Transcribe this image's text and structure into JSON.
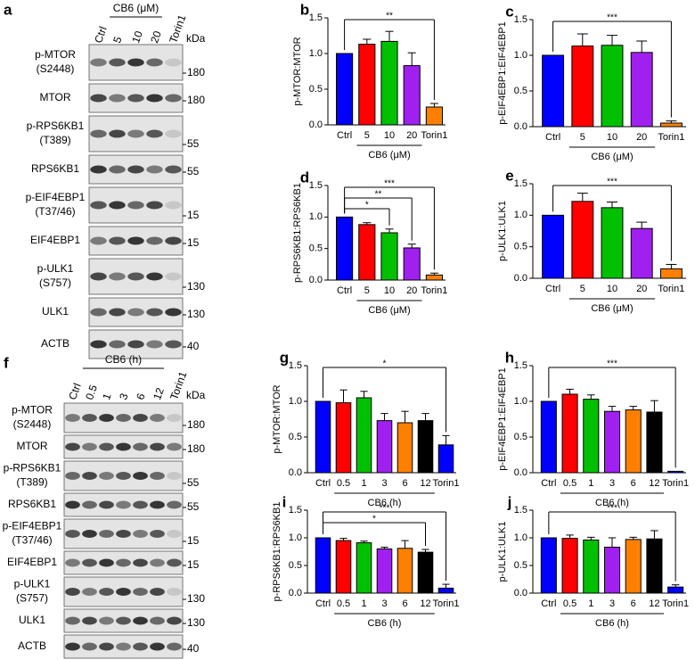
{
  "blots": [
    {
      "panel": "a",
      "lanes": [
        "Ctrl",
        "5",
        "10",
        "20",
        "Torin1"
      ],
      "group": {
        "label": "CB6 (μM)",
        "from": 1,
        "to": 3
      },
      "unit": "kDa",
      "rows": [
        {
          "name": "p-MTOR",
          "site": "(S2448)",
          "kda": 180
        },
        {
          "name": "MTOR",
          "kda": 180
        },
        {
          "name": "p-RPS6KB1",
          "site": "(T389)",
          "kda": 55
        },
        {
          "name": "RPS6KB1",
          "kda": 55
        },
        {
          "name": "p-EIF4EBP1",
          "site": "(T37/46)",
          "kda": 15
        },
        {
          "name": "EIF4EBP1",
          "kda": 15
        },
        {
          "name": "p-ULK1",
          "site": "(S757)",
          "kda": 130
        },
        {
          "name": "ULK1",
          "kda": 130
        },
        {
          "name": "ACTB",
          "kda": 40
        }
      ]
    },
    {
      "panel": "f",
      "lanes": [
        "Ctrl",
        "0.5",
        "1",
        "3",
        "6",
        "12",
        "Torin1"
      ],
      "group": {
        "label": "CB6 (h)",
        "from": 1,
        "to": 5
      },
      "unit": "kDa",
      "rows": [
        {
          "name": "p-MTOR",
          "site": "(S2448)",
          "kda": 180
        },
        {
          "name": "MTOR",
          "kda": 180
        },
        {
          "name": "p-RPS6KB1",
          "site": "(T389)",
          "kda": 55
        },
        {
          "name": "RPS6KB1",
          "kda": 55
        },
        {
          "name": "p-EIF4EBP1",
          "site": "(T37/46)",
          "kda": 15
        },
        {
          "name": "EIF4EBP1",
          "kda": 15
        },
        {
          "name": "p-ULK1",
          "site": "(S757)",
          "kda": 130
        },
        {
          "name": "ULK1",
          "kda": 130
        },
        {
          "name": "ACTB",
          "kda": 40
        }
      ]
    }
  ],
  "chart_data": [
    {
      "type": "bar",
      "panel": "b",
      "ylabel": "p-MTOR:MTOR",
      "categories": [
        "Ctrl",
        "5",
        "10",
        "20",
        "Torin1"
      ],
      "values": [
        1.0,
        1.13,
        1.17,
        0.83,
        0.25
      ],
      "errors": [
        null,
        0.07,
        0.14,
        0.18,
        0.05
      ],
      "colors": [
        "#0000ff",
        "#ff0000",
        "#00c000",
        "#a020f0",
        "#ff8000"
      ],
      "ylim": [
        0,
        1.5
      ],
      "yticks": [
        {
          "value": 0,
          "label": "0.0"
        },
        {
          "value": 0.5,
          "label": "0.5"
        },
        {
          "value": 1,
          "label": "1.0"
        },
        {
          "value": 1.5,
          "label": "1.5"
        }
      ],
      "group": {
        "label": "CB6 (μM)",
        "from": 1,
        "to": 3
      },
      "annotations": [
        {
          "text": "**",
          "from": 0,
          "to": 4
        }
      ]
    },
    {
      "type": "bar",
      "panel": "c",
      "ylabel": "p-EIF4EBP1:EIF4EBP1",
      "categories": [
        "Ctrl",
        "5",
        "10",
        "20",
        "Torin1"
      ],
      "values": [
        1.0,
        1.13,
        1.14,
        1.04,
        0.05
      ],
      "errors": [
        null,
        0.17,
        0.14,
        0.16,
        0.03
      ],
      "colors": [
        "#0000ff",
        "#ff0000",
        "#00c000",
        "#a020f0",
        "#ff8000"
      ],
      "ylim": [
        0,
        1.5
      ],
      "yticks": [
        {
          "value": 0,
          "label": "0.0"
        },
        {
          "value": 0.5,
          "label": "0.5"
        },
        {
          "value": 1,
          "label": "1.0"
        },
        {
          "value": 1.5,
          "label": "1.5"
        }
      ],
      "group": {
        "label": "CB6 (μM)",
        "from": 1,
        "to": 3
      },
      "annotations": [
        {
          "text": "***",
          "from": 0,
          "to": 4
        }
      ]
    },
    {
      "type": "bar",
      "panel": "d",
      "ylabel": "p-RPS6KB1:RPS6KB1",
      "categories": [
        "Ctrl",
        "5",
        "10",
        "20",
        "Torin1"
      ],
      "values": [
        1.0,
        0.88,
        0.75,
        0.51,
        0.08
      ],
      "errors": [
        null,
        0.03,
        0.06,
        0.06,
        0.03
      ],
      "colors": [
        "#0000ff",
        "#ff0000",
        "#00c000",
        "#a020f0",
        "#ff8000"
      ],
      "ylim": [
        0,
        1.5
      ],
      "yticks": [
        {
          "value": 0,
          "label": "0.0"
        },
        {
          "value": 0.5,
          "label": "0.5"
        },
        {
          "value": 1,
          "label": "1.0"
        },
        {
          "value": 1.5,
          "label": "1.5"
        }
      ],
      "group": {
        "label": "CB6 (μM)",
        "from": 1,
        "to": 3
      },
      "annotations": [
        {
          "text": "***",
          "from": 0,
          "to": 4
        },
        {
          "text": "**",
          "from": 0,
          "to": 3
        },
        {
          "text": "*",
          "from": 0,
          "to": 2
        }
      ]
    },
    {
      "type": "bar",
      "panel": "e",
      "ylabel": "p-ULK1:ULK1",
      "categories": [
        "Ctrl",
        "5",
        "10",
        "20",
        "Torin1"
      ],
      "values": [
        1.0,
        1.22,
        1.12,
        0.79,
        0.15
      ],
      "errors": [
        null,
        0.13,
        0.09,
        0.1,
        0.07
      ],
      "colors": [
        "#0000ff",
        "#ff0000",
        "#00c000",
        "#a020f0",
        "#ff8000"
      ],
      "ylim": [
        0,
        1.5
      ],
      "yticks": [
        {
          "value": 0,
          "label": "0.0"
        },
        {
          "value": 0.5,
          "label": "0.5"
        },
        {
          "value": 1,
          "label": "1.0"
        },
        {
          "value": 1.5,
          "label": "1.5"
        }
      ],
      "group": {
        "label": "CB6 (μM)",
        "from": 1,
        "to": 3
      },
      "annotations": [
        {
          "text": "***",
          "from": 0,
          "to": 4
        }
      ]
    },
    {
      "type": "bar",
      "panel": "g",
      "ylabel": "p-MTOR:MTOR",
      "categories": [
        "Ctrl",
        "0.5",
        "1",
        "3",
        "6",
        "12",
        "Torin1"
      ],
      "values": [
        1.0,
        0.98,
        1.05,
        0.73,
        0.7,
        0.73,
        0.39
      ],
      "errors": [
        null,
        0.18,
        0.09,
        0.1,
        0.16,
        0.1,
        0.13
      ],
      "colors": [
        "#0000ff",
        "#ff0000",
        "#00c000",
        "#a020f0",
        "#ff8000",
        "#000000",
        "#0000ff"
      ],
      "ylim": [
        0,
        1.5
      ],
      "yticks": [
        {
          "value": 0,
          "label": "0.0"
        },
        {
          "value": 0.5,
          "label": "0.5"
        },
        {
          "value": 1,
          "label": "1.0"
        },
        {
          "value": 1.5,
          "label": "1.5"
        }
      ],
      "group": {
        "label": "CB6 (h)",
        "from": 1,
        "to": 5
      },
      "annotations": [
        {
          "text": "*",
          "from": 0,
          "to": 6
        }
      ]
    },
    {
      "type": "bar",
      "panel": "h",
      "ylabel": "p-EIF4EBP1:EIF4EBP1",
      "categories": [
        "Ctrl",
        "0.5",
        "1",
        "3",
        "6",
        "12",
        "Torin1"
      ],
      "values": [
        1.0,
        1.1,
        1.03,
        0.86,
        0.88,
        0.85,
        0.02
      ],
      "errors": [
        null,
        0.07,
        0.06,
        0.07,
        0.05,
        0.16,
        null
      ],
      "colors": [
        "#0000ff",
        "#ff0000",
        "#00c000",
        "#a020f0",
        "#ff8000",
        "#000000",
        "#0000ff"
      ],
      "ylim": [
        0,
        1.5
      ],
      "yticks": [
        {
          "value": 0,
          "label": "0.0"
        },
        {
          "value": 0.5,
          "label": "0.5"
        },
        {
          "value": 1,
          "label": "1.0"
        },
        {
          "value": 1.5,
          "label": "1.5"
        }
      ],
      "group": {
        "label": "CB6 (h)",
        "from": 1,
        "to": 5
      },
      "annotations": [
        {
          "text": "***",
          "from": 0,
          "to": 6
        }
      ]
    },
    {
      "type": "bar",
      "panel": "i",
      "ylabel": "p-RPS6KB1:RPS6KB1",
      "categories": [
        "Ctrl",
        "0.5",
        "1",
        "3",
        "6",
        "12",
        "Torin1"
      ],
      "values": [
        1.0,
        0.95,
        0.91,
        0.8,
        0.81,
        0.74,
        0.09
      ],
      "errors": [
        null,
        0.04,
        0.03,
        0.03,
        0.14,
        0.05,
        0.07
      ],
      "colors": [
        "#0000ff",
        "#ff0000",
        "#00c000",
        "#a020f0",
        "#ff8000",
        "#000000",
        "#0000ff"
      ],
      "ylim": [
        0,
        1.5
      ],
      "yticks": [
        {
          "value": 0,
          "label": "0.0"
        },
        {
          "value": 0.5,
          "label": "0.5"
        },
        {
          "value": 1,
          "label": "1.0"
        },
        {
          "value": 1.5,
          "label": "1.5"
        }
      ],
      "group": {
        "label": "CB6 (h)",
        "from": 1,
        "to": 5
      },
      "annotations": [
        {
          "text": "***",
          "from": 0,
          "to": 6
        },
        {
          "text": "*",
          "from": 0,
          "to": 5
        }
      ]
    },
    {
      "type": "bar",
      "panel": "j",
      "ylabel": "p-ULK1:ULK1",
      "categories": [
        "Ctrl",
        "0.5",
        "1",
        "3",
        "6",
        "12",
        "Torin1"
      ],
      "values": [
        1.0,
        0.99,
        0.96,
        0.83,
        0.97,
        0.98,
        0.11
      ],
      "errors": [
        null,
        0.06,
        0.05,
        0.17,
        0.04,
        0.15,
        0.04
      ],
      "colors": [
        "#0000ff",
        "#ff0000",
        "#00c000",
        "#a020f0",
        "#ff8000",
        "#000000",
        "#0000ff"
      ],
      "ylim": [
        0,
        1.5
      ],
      "yticks": [
        {
          "value": 0,
          "label": "0.0"
        },
        {
          "value": 0.5,
          "label": "0.5"
        },
        {
          "value": 1,
          "label": "1.0"
        },
        {
          "value": 1.5,
          "label": "1.5"
        }
      ],
      "group": {
        "label": "CB6 (h)",
        "from": 1,
        "to": 5
      },
      "annotations": [
        {
          "text": "***",
          "from": 0,
          "to": 6
        }
      ]
    }
  ]
}
